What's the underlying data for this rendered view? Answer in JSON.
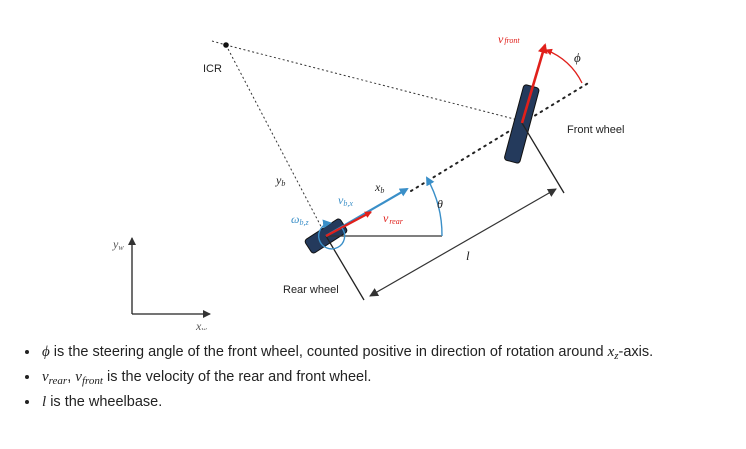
{
  "diagram": {
    "icr_label": "ICR",
    "front_wheel_label": "Front wheel",
    "rear_wheel_label": "Rear wheel",
    "v_front": {
      "base": "v",
      "sub": "front"
    },
    "v_rear": {
      "base": "v",
      "sub": "rear"
    },
    "phi_label": "ϕ",
    "theta_label": "θ",
    "l_label": "l",
    "x_b": {
      "base": "x",
      "sub": "b"
    },
    "y_b": {
      "base": "y",
      "sub": "b"
    },
    "v_bx": {
      "base": "v",
      "sub": "b,x"
    },
    "omega_bz": {
      "base": "ω",
      "sub": "b,z"
    },
    "y_w": {
      "base": "y",
      "sub": "w"
    },
    "x_w": {
      "base": "x",
      "sub": "w"
    },
    "colors": {
      "red": "#e0201b",
      "blue": "#3a8fc8",
      "wheel": "#243a5c",
      "line": "#333333"
    }
  },
  "notes": [
    {
      "sym": "ϕ",
      "text": " is the steering angle of the front wheel, counted positive in direction of rotation around ",
      "tail_sym": "x",
      "tail_sub": "z",
      "tail_text": "-axis."
    },
    {
      "sym1": "v",
      "sub1": "rear",
      "sep": ", ",
      "sym2": "v",
      "sub2": "front",
      "text": " is the velocity of the rear and front wheel."
    },
    {
      "sym": "l",
      "text": " is the wheelbase."
    }
  ]
}
